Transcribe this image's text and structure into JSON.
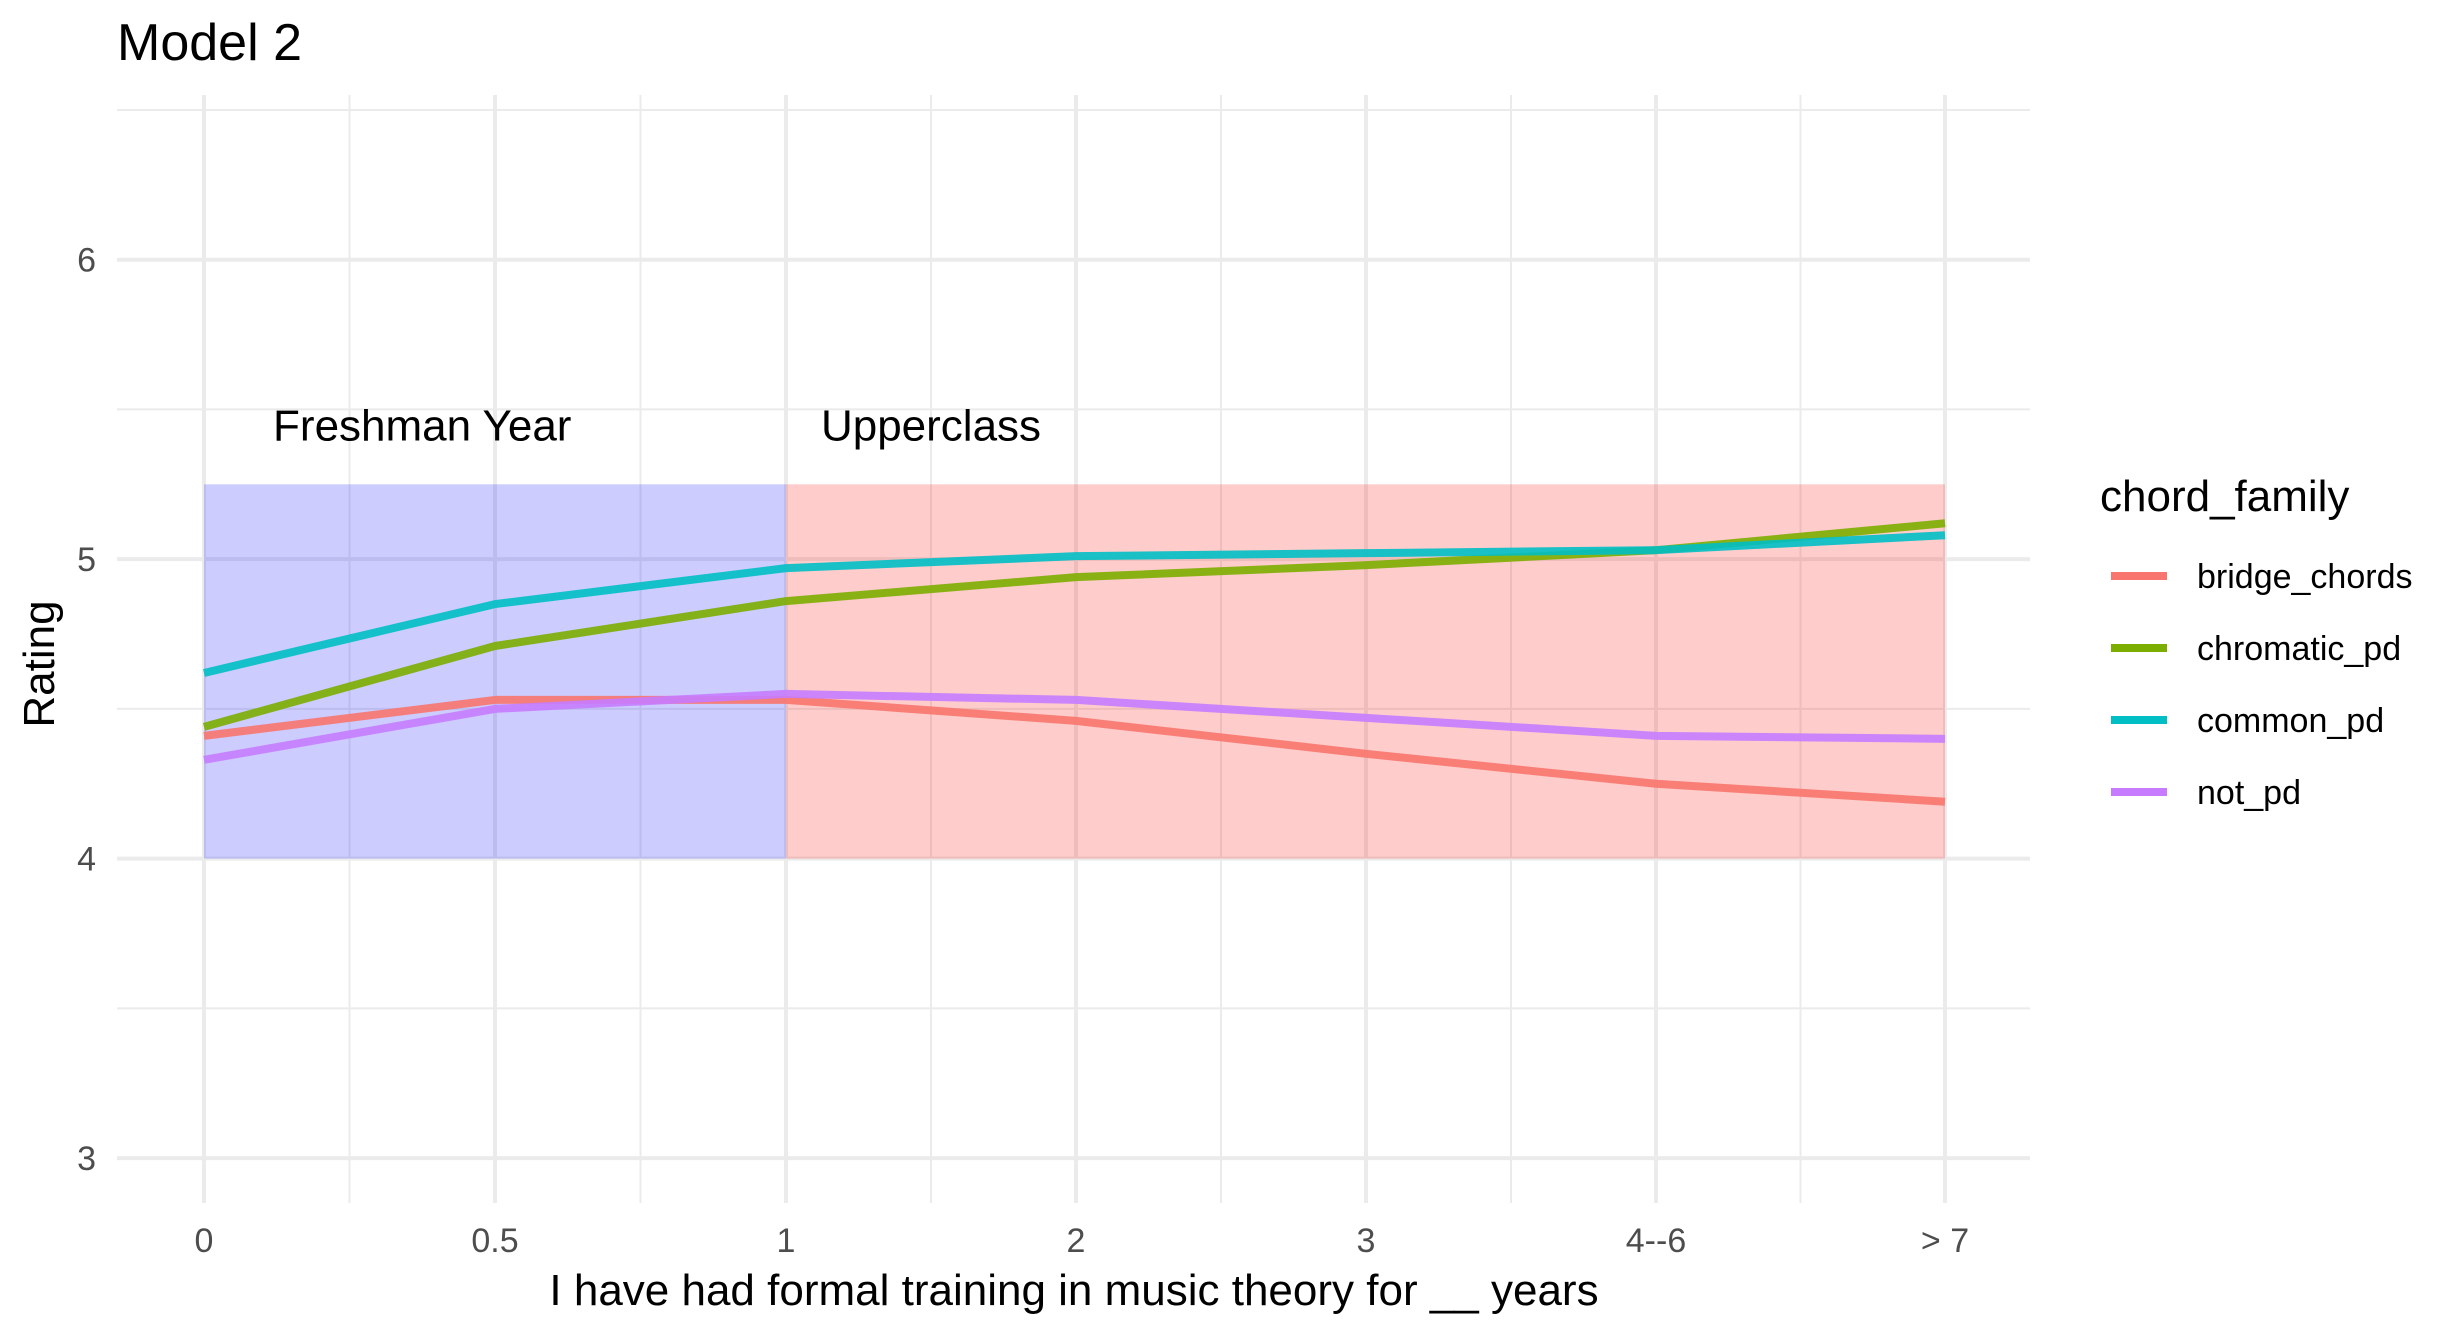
{
  "chart_data": {
    "type": "line",
    "title": "Model 2",
    "xlabel": "I have had formal training in music theory for __ years",
    "ylabel": "Rating",
    "categories": [
      "0",
      "0.5",
      "1",
      "2",
      "3",
      "4--6",
      "> 7"
    ],
    "y_ticks": [
      3,
      4,
      5,
      6
    ],
    "ylim": [
      2.85,
      6.55
    ],
    "grid": true,
    "legend": {
      "title": "chord_family",
      "position": "right"
    },
    "regions": [
      {
        "label": "Freshman Year",
        "x_start": "0",
        "x_end": "1",
        "y_min": 4,
        "y_max": 5.25,
        "color": "#0000ff",
        "opacity": 0.2,
        "label_x": 0.75,
        "label_y": 5.45
      },
      {
        "label": "Upperclass",
        "x_start": "1",
        "x_end": "> 7",
        "y_min": 4,
        "y_max": 5.25,
        "color": "#ff0000",
        "opacity": 0.2,
        "label_x": 2.5,
        "label_y": 5.45
      }
    ],
    "series": [
      {
        "name": "bridge_chords",
        "color": "#F8766D",
        "values": [
          4.41,
          4.53,
          4.53,
          4.46,
          4.35,
          4.25,
          4.19
        ]
      },
      {
        "name": "chromatic_pd",
        "color": "#7CAE00",
        "values": [
          4.44,
          4.71,
          4.86,
          4.94,
          4.98,
          5.03,
          5.12
        ]
      },
      {
        "name": "common_pd",
        "color": "#00BFC4",
        "values": [
          4.62,
          4.85,
          4.97,
          5.01,
          5.02,
          5.03,
          5.08
        ]
      },
      {
        "name": "not_pd",
        "color": "#C77CFF",
        "values": [
          4.33,
          4.5,
          4.55,
          4.53,
          4.47,
          4.41,
          4.4
        ]
      }
    ]
  }
}
